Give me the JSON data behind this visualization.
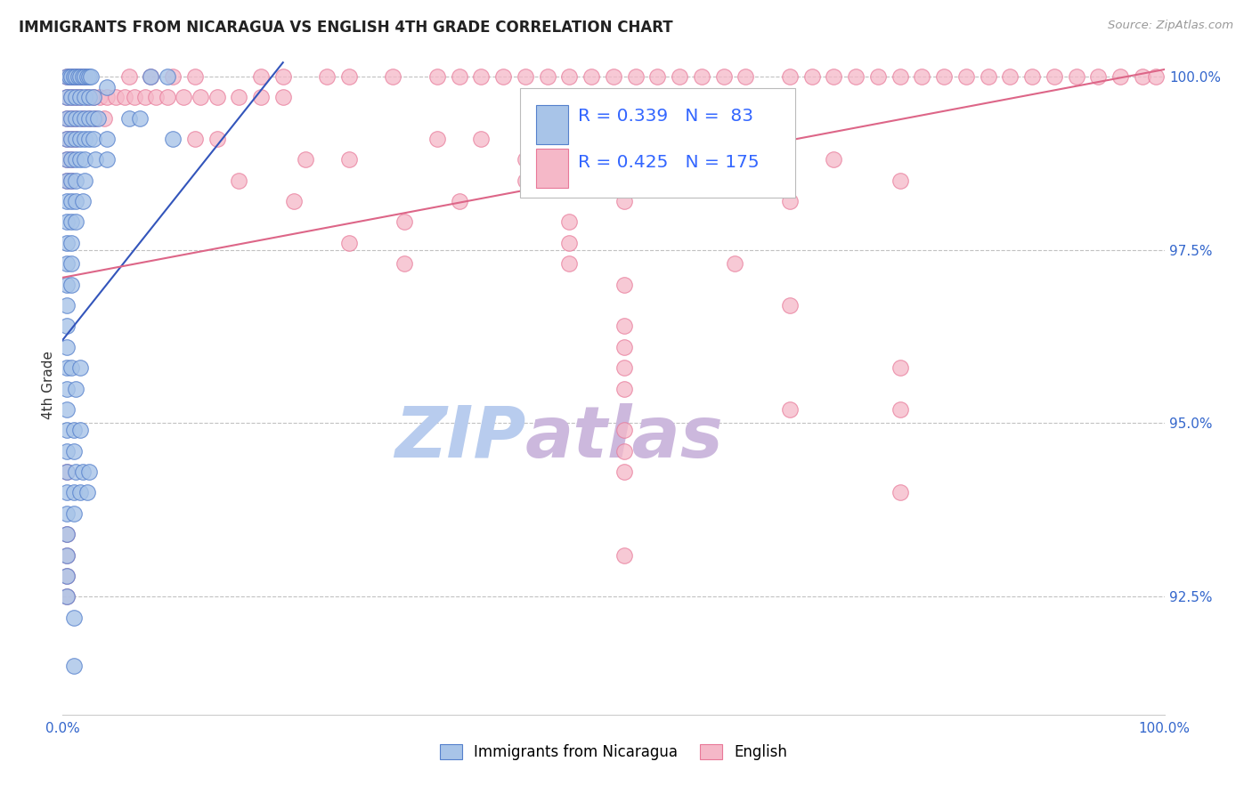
{
  "title": "IMMIGRANTS FROM NICARAGUA VS ENGLISH 4TH GRADE CORRELATION CHART",
  "source": "Source: ZipAtlas.com",
  "ylabel": "4th Grade",
  "ylabel_right_labels": [
    "100.0%",
    "97.5%",
    "95.0%",
    "92.5%"
  ],
  "ylabel_right_values": [
    1.0,
    0.975,
    0.95,
    0.925
  ],
  "legend_blue_R": "0.339",
  "legend_blue_N": "83",
  "legend_pink_R": "0.425",
  "legend_pink_N": "175",
  "legend_label_blue": "Immigrants from Nicaragua",
  "legend_label_pink": "English",
  "blue_scatter_color": "#a8c4e8",
  "blue_edge_color": "#5580cc",
  "pink_scatter_color": "#f5b8c8",
  "pink_edge_color": "#e87898",
  "blue_line_color": "#3355bb",
  "pink_line_color": "#dd6688",
  "legend_R_color": "#222222",
  "legend_N_color": "#3366ff",
  "watermark_zip_color": "#c8d8ee",
  "watermark_atlas_color": "#d8c8e8",
  "bg_color": "#ffffff",
  "grid_color": "#bbbbbb",
  "title_color": "#222222",
  "x_axis_min": 0.0,
  "x_axis_max": 1.0,
  "y_axis_min": 0.908,
  "y_axis_max": 1.003,
  "blue_line_x0": 0.0,
  "blue_line_y0": 0.962,
  "blue_line_x1": 0.2,
  "blue_line_y1": 1.002,
  "pink_line_x0": 0.0,
  "pink_line_y0": 0.971,
  "pink_line_x1": 1.0,
  "pink_line_y1": 1.001,
  "blue_scatter": [
    [
      0.004,
      1.0
    ],
    [
      0.006,
      1.0
    ],
    [
      0.008,
      1.0
    ],
    [
      0.01,
      1.0
    ],
    [
      0.012,
      1.0
    ],
    [
      0.014,
      1.0
    ],
    [
      0.016,
      1.0
    ],
    [
      0.018,
      1.0
    ],
    [
      0.02,
      1.0
    ],
    [
      0.022,
      1.0
    ],
    [
      0.024,
      1.0
    ],
    [
      0.026,
      1.0
    ],
    [
      0.08,
      1.0
    ],
    [
      0.095,
      1.0
    ],
    [
      0.04,
      0.9985
    ],
    [
      0.004,
      0.997
    ],
    [
      0.008,
      0.997
    ],
    [
      0.012,
      0.997
    ],
    [
      0.016,
      0.997
    ],
    [
      0.02,
      0.997
    ],
    [
      0.024,
      0.997
    ],
    [
      0.028,
      0.997
    ],
    [
      0.004,
      0.994
    ],
    [
      0.008,
      0.994
    ],
    [
      0.012,
      0.994
    ],
    [
      0.016,
      0.994
    ],
    [
      0.02,
      0.994
    ],
    [
      0.024,
      0.994
    ],
    [
      0.028,
      0.994
    ],
    [
      0.032,
      0.994
    ],
    [
      0.06,
      0.994
    ],
    [
      0.07,
      0.994
    ],
    [
      0.004,
      0.991
    ],
    [
      0.008,
      0.991
    ],
    [
      0.012,
      0.991
    ],
    [
      0.016,
      0.991
    ],
    [
      0.02,
      0.991
    ],
    [
      0.024,
      0.991
    ],
    [
      0.028,
      0.991
    ],
    [
      0.04,
      0.991
    ],
    [
      0.1,
      0.991
    ],
    [
      0.004,
      0.988
    ],
    [
      0.008,
      0.988
    ],
    [
      0.012,
      0.988
    ],
    [
      0.016,
      0.988
    ],
    [
      0.02,
      0.988
    ],
    [
      0.03,
      0.988
    ],
    [
      0.04,
      0.988
    ],
    [
      0.004,
      0.985
    ],
    [
      0.008,
      0.985
    ],
    [
      0.012,
      0.985
    ],
    [
      0.02,
      0.985
    ],
    [
      0.004,
      0.982
    ],
    [
      0.008,
      0.982
    ],
    [
      0.012,
      0.982
    ],
    [
      0.018,
      0.982
    ],
    [
      0.004,
      0.979
    ],
    [
      0.008,
      0.979
    ],
    [
      0.012,
      0.979
    ],
    [
      0.004,
      0.976
    ],
    [
      0.008,
      0.976
    ],
    [
      0.004,
      0.973
    ],
    [
      0.008,
      0.973
    ],
    [
      0.004,
      0.97
    ],
    [
      0.008,
      0.97
    ],
    [
      0.004,
      0.967
    ],
    [
      0.004,
      0.964
    ],
    [
      0.004,
      0.961
    ],
    [
      0.004,
      0.958
    ],
    [
      0.008,
      0.958
    ],
    [
      0.016,
      0.958
    ],
    [
      0.004,
      0.955
    ],
    [
      0.012,
      0.955
    ],
    [
      0.004,
      0.952
    ],
    [
      0.004,
      0.949
    ],
    [
      0.01,
      0.949
    ],
    [
      0.016,
      0.949
    ],
    [
      0.004,
      0.946
    ],
    [
      0.01,
      0.946
    ],
    [
      0.004,
      0.943
    ],
    [
      0.012,
      0.943
    ],
    [
      0.018,
      0.943
    ],
    [
      0.024,
      0.943
    ],
    [
      0.004,
      0.94
    ],
    [
      0.01,
      0.94
    ],
    [
      0.016,
      0.94
    ],
    [
      0.022,
      0.94
    ],
    [
      0.004,
      0.937
    ],
    [
      0.01,
      0.937
    ],
    [
      0.004,
      0.934
    ],
    [
      0.004,
      0.931
    ],
    [
      0.004,
      0.928
    ],
    [
      0.004,
      0.925
    ],
    [
      0.01,
      0.922
    ],
    [
      0.01,
      0.915
    ]
  ],
  "pink_scatter": [
    [
      0.004,
      1.0
    ],
    [
      0.006,
      1.0
    ],
    [
      0.008,
      1.0
    ],
    [
      0.01,
      1.0
    ],
    [
      0.012,
      1.0
    ],
    [
      0.014,
      1.0
    ],
    [
      0.016,
      1.0
    ],
    [
      0.018,
      1.0
    ],
    [
      0.02,
      1.0
    ],
    [
      0.06,
      1.0
    ],
    [
      0.08,
      1.0
    ],
    [
      0.1,
      1.0
    ],
    [
      0.12,
      1.0
    ],
    [
      0.18,
      1.0
    ],
    [
      0.2,
      1.0
    ],
    [
      0.24,
      1.0
    ],
    [
      0.26,
      1.0
    ],
    [
      0.3,
      1.0
    ],
    [
      0.34,
      1.0
    ],
    [
      0.36,
      1.0
    ],
    [
      0.38,
      1.0
    ],
    [
      0.4,
      1.0
    ],
    [
      0.42,
      1.0
    ],
    [
      0.44,
      1.0
    ],
    [
      0.46,
      1.0
    ],
    [
      0.48,
      1.0
    ],
    [
      0.5,
      1.0
    ],
    [
      0.52,
      1.0
    ],
    [
      0.54,
      1.0
    ],
    [
      0.56,
      1.0
    ],
    [
      0.58,
      1.0
    ],
    [
      0.6,
      1.0
    ],
    [
      0.62,
      1.0
    ],
    [
      0.66,
      1.0
    ],
    [
      0.68,
      1.0
    ],
    [
      0.7,
      1.0
    ],
    [
      0.72,
      1.0
    ],
    [
      0.74,
      1.0
    ],
    [
      0.76,
      1.0
    ],
    [
      0.78,
      1.0
    ],
    [
      0.8,
      1.0
    ],
    [
      0.82,
      1.0
    ],
    [
      0.84,
      1.0
    ],
    [
      0.86,
      1.0
    ],
    [
      0.88,
      1.0
    ],
    [
      0.9,
      1.0
    ],
    [
      0.92,
      1.0
    ],
    [
      0.94,
      1.0
    ],
    [
      0.96,
      1.0
    ],
    [
      0.98,
      1.0
    ],
    [
      0.992,
      1.0
    ],
    [
      0.004,
      0.997
    ],
    [
      0.008,
      0.997
    ],
    [
      0.012,
      0.997
    ],
    [
      0.016,
      0.997
    ],
    [
      0.022,
      0.997
    ],
    [
      0.028,
      0.997
    ],
    [
      0.034,
      0.997
    ],
    [
      0.04,
      0.997
    ],
    [
      0.048,
      0.997
    ],
    [
      0.056,
      0.997
    ],
    [
      0.065,
      0.997
    ],
    [
      0.075,
      0.997
    ],
    [
      0.085,
      0.997
    ],
    [
      0.095,
      0.997
    ],
    [
      0.11,
      0.997
    ],
    [
      0.125,
      0.997
    ],
    [
      0.14,
      0.997
    ],
    [
      0.16,
      0.997
    ],
    [
      0.18,
      0.997
    ],
    [
      0.2,
      0.997
    ],
    [
      0.004,
      0.994
    ],
    [
      0.008,
      0.994
    ],
    [
      0.012,
      0.994
    ],
    [
      0.018,
      0.994
    ],
    [
      0.024,
      0.994
    ],
    [
      0.03,
      0.994
    ],
    [
      0.038,
      0.994
    ],
    [
      0.004,
      0.991
    ],
    [
      0.008,
      0.991
    ],
    [
      0.012,
      0.991
    ],
    [
      0.12,
      0.991
    ],
    [
      0.14,
      0.991
    ],
    [
      0.34,
      0.991
    ],
    [
      0.38,
      0.991
    ],
    [
      0.52,
      0.991
    ],
    [
      0.004,
      0.988
    ],
    [
      0.008,
      0.988
    ],
    [
      0.22,
      0.988
    ],
    [
      0.26,
      0.988
    ],
    [
      0.42,
      0.988
    ],
    [
      0.56,
      0.988
    ],
    [
      0.7,
      0.988
    ],
    [
      0.004,
      0.985
    ],
    [
      0.008,
      0.985
    ],
    [
      0.16,
      0.985
    ],
    [
      0.42,
      0.985
    ],
    [
      0.62,
      0.985
    ],
    [
      0.76,
      0.985
    ],
    [
      0.21,
      0.982
    ],
    [
      0.36,
      0.982
    ],
    [
      0.51,
      0.982
    ],
    [
      0.66,
      0.982
    ],
    [
      0.31,
      0.979
    ],
    [
      0.46,
      0.979
    ],
    [
      0.26,
      0.976
    ],
    [
      0.46,
      0.976
    ],
    [
      0.31,
      0.973
    ],
    [
      0.46,
      0.973
    ],
    [
      0.61,
      0.973
    ],
    [
      0.51,
      0.97
    ],
    [
      0.66,
      0.967
    ],
    [
      0.51,
      0.964
    ],
    [
      0.51,
      0.961
    ],
    [
      0.51,
      0.958
    ],
    [
      0.76,
      0.958
    ],
    [
      0.51,
      0.955
    ],
    [
      0.66,
      0.952
    ],
    [
      0.76,
      0.952
    ],
    [
      0.51,
      0.949
    ],
    [
      0.51,
      0.946
    ],
    [
      0.004,
      0.943
    ],
    [
      0.51,
      0.943
    ],
    [
      0.76,
      0.94
    ],
    [
      0.004,
      0.934
    ],
    [
      0.004,
      0.931
    ],
    [
      0.51,
      0.931
    ],
    [
      0.004,
      0.928
    ],
    [
      0.004,
      0.925
    ]
  ]
}
